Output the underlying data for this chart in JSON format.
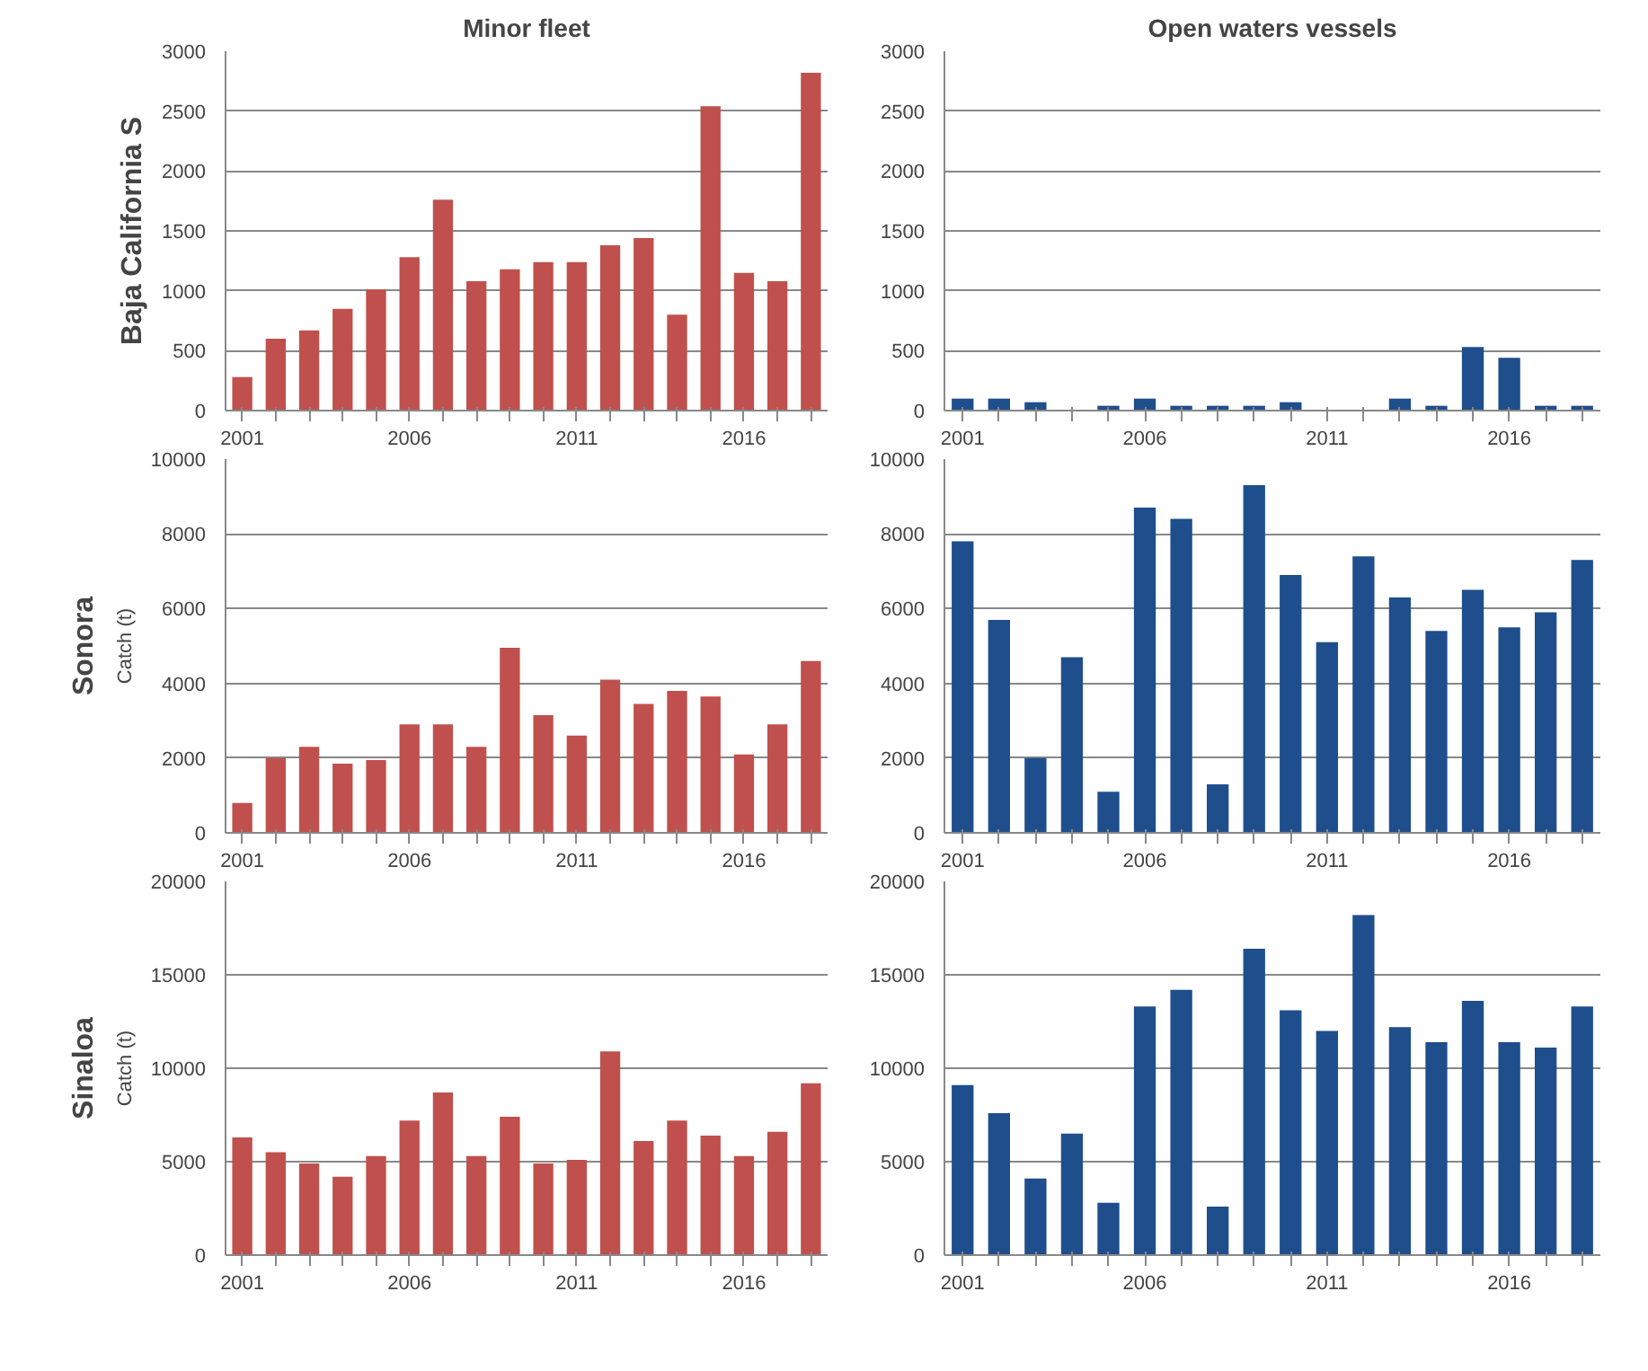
{
  "chart_data": [
    {
      "type": "bar",
      "title": "Minor fleet",
      "annotations": [
        "Baja California S"
      ],
      "categories": [
        "2001",
        null,
        null,
        null,
        null,
        "2006",
        null,
        null,
        null,
        null,
        "2011",
        null,
        null,
        null,
        null,
        "2016",
        null,
        null
      ],
      "values": [
        280,
        600,
        670,
        850,
        1010,
        1280,
        1760,
        1080,
        1180,
        1240,
        1240,
        1380,
        1440,
        800,
        2540,
        1150,
        1080,
        2820
      ],
      "color": "#c0504d",
      "ylim": [
        0,
        3000
      ],
      "yticks": [
        0,
        500,
        1000,
        1500,
        2000,
        2500,
        3000
      ],
      "grid": "y"
    },
    {
      "type": "bar",
      "title": "Open waters vessels",
      "categories": [
        "2001",
        null,
        null,
        null,
        null,
        "2006",
        null,
        null,
        null,
        null,
        "2011",
        null,
        null,
        null,
        null,
        "2016",
        null,
        null
      ],
      "values": [
        100,
        100,
        70,
        0,
        40,
        100,
        40,
        40,
        40,
        70,
        0,
        0,
        100,
        40,
        530,
        440,
        40,
        40
      ],
      "color": "#1f4e8c",
      "ylim": [
        0,
        3000
      ],
      "yticks": [
        0,
        500,
        1000,
        1500,
        2000,
        2500,
        3000
      ],
      "grid": "y"
    },
    {
      "type": "bar",
      "ylabel": "Catch (t)",
      "annotations": [
        "Sonora"
      ],
      "categories": [
        "2001",
        null,
        null,
        null,
        null,
        "2006",
        null,
        null,
        null,
        null,
        "2011",
        null,
        null,
        null,
        null,
        "2016",
        null,
        null
      ],
      "values": [
        800,
        2000,
        2300,
        1850,
        1950,
        2900,
        2900,
        2300,
        4950,
        3150,
        2600,
        4100,
        3450,
        3800,
        3650,
        2100,
        2900,
        4600
      ],
      "color": "#c0504d",
      "ylim": [
        0,
        10000
      ],
      "yticks": [
        0,
        2000,
        4000,
        6000,
        8000,
        10000
      ],
      "grid": "y"
    },
    {
      "type": "bar",
      "categories": [
        "2001",
        null,
        null,
        null,
        null,
        "2006",
        null,
        null,
        null,
        null,
        "2011",
        null,
        null,
        null,
        null,
        "2016",
        null,
        null
      ],
      "values": [
        7800,
        5700,
        2000,
        4700,
        1100,
        8700,
        8400,
        1300,
        9300,
        6900,
        5100,
        7400,
        6300,
        5400,
        6500,
        5500,
        5900,
        7300
      ],
      "color": "#1f4e8c",
      "ylim": [
        0,
        10000
      ],
      "yticks": [
        0,
        2000,
        4000,
        6000,
        8000,
        10000
      ],
      "grid": "y"
    },
    {
      "type": "bar",
      "ylabel": "Catch (t)",
      "annotations": [
        "Sinaloa"
      ],
      "categories": [
        "2001",
        null,
        null,
        null,
        null,
        "2006",
        null,
        null,
        null,
        null,
        "2011",
        null,
        null,
        null,
        null,
        "2016",
        null,
        null
      ],
      "values": [
        6300,
        5500,
        4900,
        4200,
        5300,
        7200,
        8700,
        5300,
        7400,
        4900,
        5100,
        10900,
        6100,
        7200,
        6400,
        5300,
        6600,
        9200
      ],
      "color": "#c0504d",
      "ylim": [
        0,
        20000
      ],
      "yticks": [
        0,
        5000,
        10000,
        15000,
        20000
      ],
      "grid": "y"
    },
    {
      "type": "bar",
      "categories": [
        "2001",
        null,
        null,
        null,
        null,
        "2006",
        null,
        null,
        null,
        null,
        "2011",
        null,
        null,
        null,
        null,
        "2016",
        null,
        null
      ],
      "values": [
        9100,
        7600,
        4100,
        6500,
        2800,
        13300,
        14200,
        2600,
        16400,
        13100,
        12000,
        18200,
        12200,
        11400,
        13600,
        11400,
        11100,
        13300
      ],
      "color": "#1f4e8c",
      "ylim": [
        0,
        20000
      ],
      "yticks": [
        0,
        5000,
        10000,
        15000,
        20000
      ],
      "grid": "y"
    }
  ]
}
